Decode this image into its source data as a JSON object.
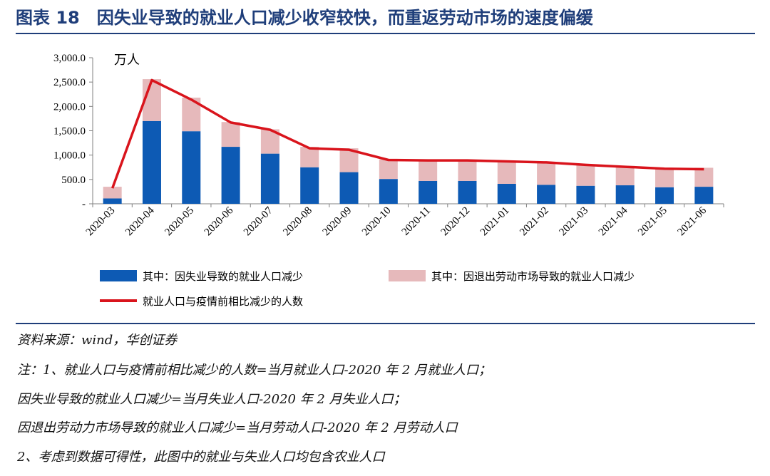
{
  "figure": {
    "title": "图表 18　因失业导致的就业人口减少收窄较快，而重返劳动市场的速度偏缓"
  },
  "colors": {
    "title": "#1f3e7a",
    "bar_unemployment": "#0d5ab4",
    "bar_exit": "#e6b9bb",
    "line": "#d9141c"
  },
  "chart_data": {
    "type": "bar",
    "stacked": true,
    "unit_label": "万人",
    "categories": [
      "2020-03",
      "2020-04",
      "2020-05",
      "2020-06",
      "2020-07",
      "2020-08",
      "2020-09",
      "2020-10",
      "2020-11",
      "2020-12",
      "2021-01",
      "2021-02",
      "2021-03",
      "2021-04",
      "2021-05",
      "2021-06"
    ],
    "ylim": [
      0,
      3000
    ],
    "yticks": [
      0,
      500,
      1000,
      1500,
      2000,
      2500,
      3000
    ],
    "ytick_labels": [
      "-",
      "500.0",
      "1,000.0",
      "1,500.0",
      "2,000.0",
      "2,500.0",
      "3,000.0"
    ],
    "grid": false,
    "legend_position": "bottom",
    "series": [
      {
        "name": "其中：因失业导致的就业人口减少",
        "type": "bar",
        "values": [
          110,
          1700,
          1490,
          1170,
          1030,
          750,
          650,
          510,
          470,
          470,
          410,
          390,
          370,
          380,
          340,
          350
        ]
      },
      {
        "name": "其中：因退出劳动市场导致的就业人口减少",
        "type": "bar",
        "values": [
          240,
          860,
          690,
          510,
          500,
          420,
          490,
          400,
          420,
          420,
          450,
          460,
          430,
          400,
          370,
          390
        ]
      },
      {
        "name": "就业人口与疫情前相比减少的人数",
        "type": "line",
        "values": [
          320,
          2540,
          2140,
          1670,
          1520,
          1140,
          1110,
          900,
          890,
          890,
          870,
          850,
          800,
          760,
          720,
          710
        ]
      }
    ]
  },
  "notes": {
    "source": "资料来源：wind，华创证券",
    "note1": "注：1、就业人口与疫情前相比减少的人数=当月就业人口-2020 年 2 月就业人口；",
    "note2": "因失业导致的就业人口减少=当月失业人口-2020 年 2 月失业人口；",
    "note3": "因退出劳动力市场导致的就业人口减少=当月劳动人口-2020 年 2 月劳动人口",
    "note4": "2、考虑到数据可得性，此图中的就业与失业人口均包含农业人口"
  }
}
